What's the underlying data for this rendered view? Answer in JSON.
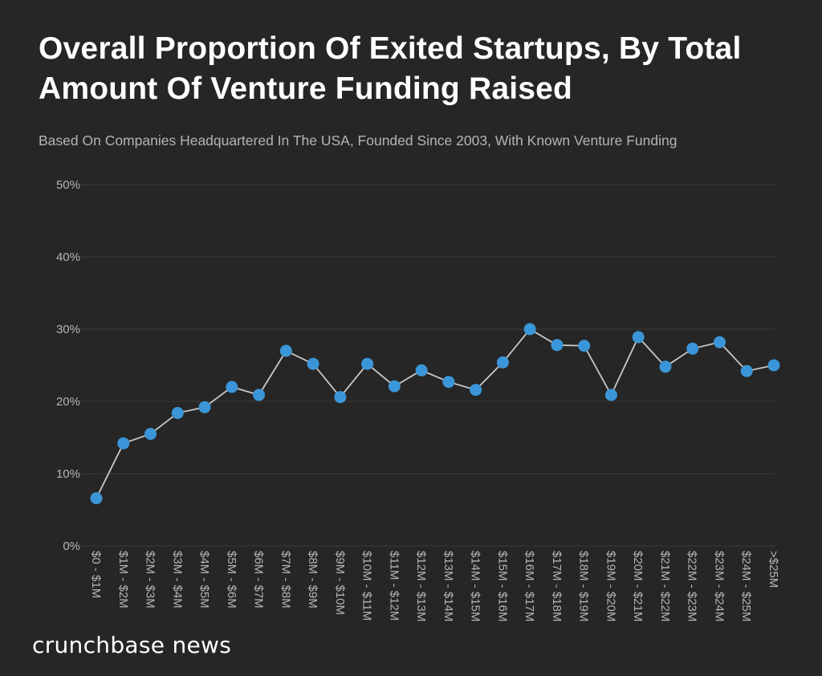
{
  "header": {
    "title": "Overall Proportion Of Exited Startups, By Total Amount Of Venture Funding Raised",
    "subtitle": "Based On Companies Headquartered In The USA, Founded Since 2003, With Known Venture Funding"
  },
  "brand": {
    "logo_text": "crunchbase news"
  },
  "colors": {
    "background": "#262626",
    "point": "#3a96d8",
    "line": "#c8c8c8",
    "grid": "#3a3a3a",
    "tick_text": "#b4b4b4"
  },
  "chart_data": {
    "type": "line",
    "title": "Overall Proportion Of Exited Startups, By Total Amount Of Venture Funding Raised",
    "subtitle": "Based On Companies Headquartered In The USA, Founded Since 2003, With Known Venture Funding",
    "xlabel": "",
    "ylabel": "",
    "ylim": [
      0,
      50
    ],
    "y_ticks": [
      0,
      10,
      20,
      30,
      40,
      50
    ],
    "y_tick_labels": [
      "0%",
      "10%",
      "20%",
      "30%",
      "40%",
      "50%"
    ],
    "grid": true,
    "legend": "none",
    "categories": [
      "$0 - $1M",
      "$1M - $2M",
      "$2M - $3M",
      "$3M - $4M",
      "$4M - $5M",
      "$5M - $6M",
      "$6M - $7M",
      "$7M - $8M",
      "$8M - $9M",
      "$9M - $10M",
      "$10M - $11M",
      "$11M - $12M",
      "$12M - $13M",
      "$13M - $14M",
      "$14M - $15M",
      "$15M - $16M",
      "$16M - $17M",
      "$17M - $18M",
      "$18M - $19M",
      "$19M - $20M",
      "$20M - $21M",
      "$21M - $22M",
      "$22M - $23M",
      "$23M - $24M",
      "$24M - $25M",
      ">$25M"
    ],
    "values": [
      6.6,
      14.2,
      15.5,
      18.4,
      19.2,
      22.0,
      20.9,
      27.0,
      25.2,
      20.6,
      25.2,
      22.1,
      24.3,
      22.7,
      21.6,
      25.4,
      30.0,
      27.8,
      27.7,
      20.9,
      28.9,
      24.8,
      27.3,
      28.2,
      24.2,
      25.0
    ]
  }
}
